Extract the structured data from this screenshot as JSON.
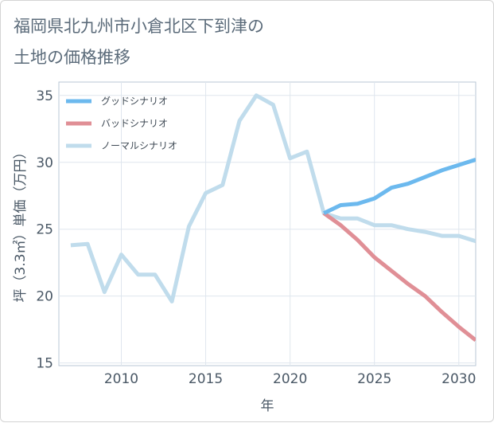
{
  "chart_data": {
    "type": "line",
    "title_lines": [
      "福岡県北九州市小倉北区下到津の",
      "土地の価格推移"
    ],
    "xlabel": "年",
    "ylabel": "坪（3.3㎡）単価（万円）",
    "xlim": [
      2006.3,
      2031.0
    ],
    "ylim": [
      14.8,
      36.0
    ],
    "x_ticks": [
      2010,
      2015,
      2020,
      2025,
      2030
    ],
    "y_ticks": [
      15,
      20,
      25,
      30,
      35
    ],
    "grid": true,
    "legend_position": "top-left",
    "series": [
      {
        "name": "グッドシナリオ",
        "color": "#6cb9ee",
        "x": [
          2022,
          2023,
          2024,
          2025,
          2026,
          2027,
          2028,
          2029,
          2030,
          2031
        ],
        "y": [
          26.2,
          26.8,
          26.9,
          27.3,
          28.1,
          28.4,
          28.9,
          29.4,
          29.8,
          30.2
        ]
      },
      {
        "name": "バッドシナリオ",
        "color": "#e08f96",
        "x": [
          2022,
          2023,
          2024,
          2025,
          2026,
          2027,
          2028,
          2029,
          2030,
          2031
        ],
        "y": [
          26.2,
          25.3,
          24.2,
          22.9,
          21.9,
          20.9,
          20.0,
          18.8,
          17.7,
          16.7
        ]
      },
      {
        "name": "ノーマルシナリオ",
        "color": "#c0dcec",
        "x": [
          2007,
          2008,
          2009,
          2010,
          2011,
          2012,
          2013,
          2014,
          2015,
          2016,
          2017,
          2018,
          2019,
          2020,
          2021,
          2022,
          2023,
          2024,
          2025,
          2026,
          2027,
          2028,
          2029,
          2030,
          2031
        ],
        "y": [
          23.8,
          23.9,
          20.3,
          23.1,
          21.6,
          21.6,
          19.6,
          25.2,
          27.7,
          28.3,
          33.1,
          35.0,
          34.3,
          30.3,
          30.8,
          26.2,
          25.8,
          25.8,
          25.3,
          25.3,
          25.0,
          24.8,
          24.5,
          24.5,
          24.1
        ]
      }
    ]
  }
}
